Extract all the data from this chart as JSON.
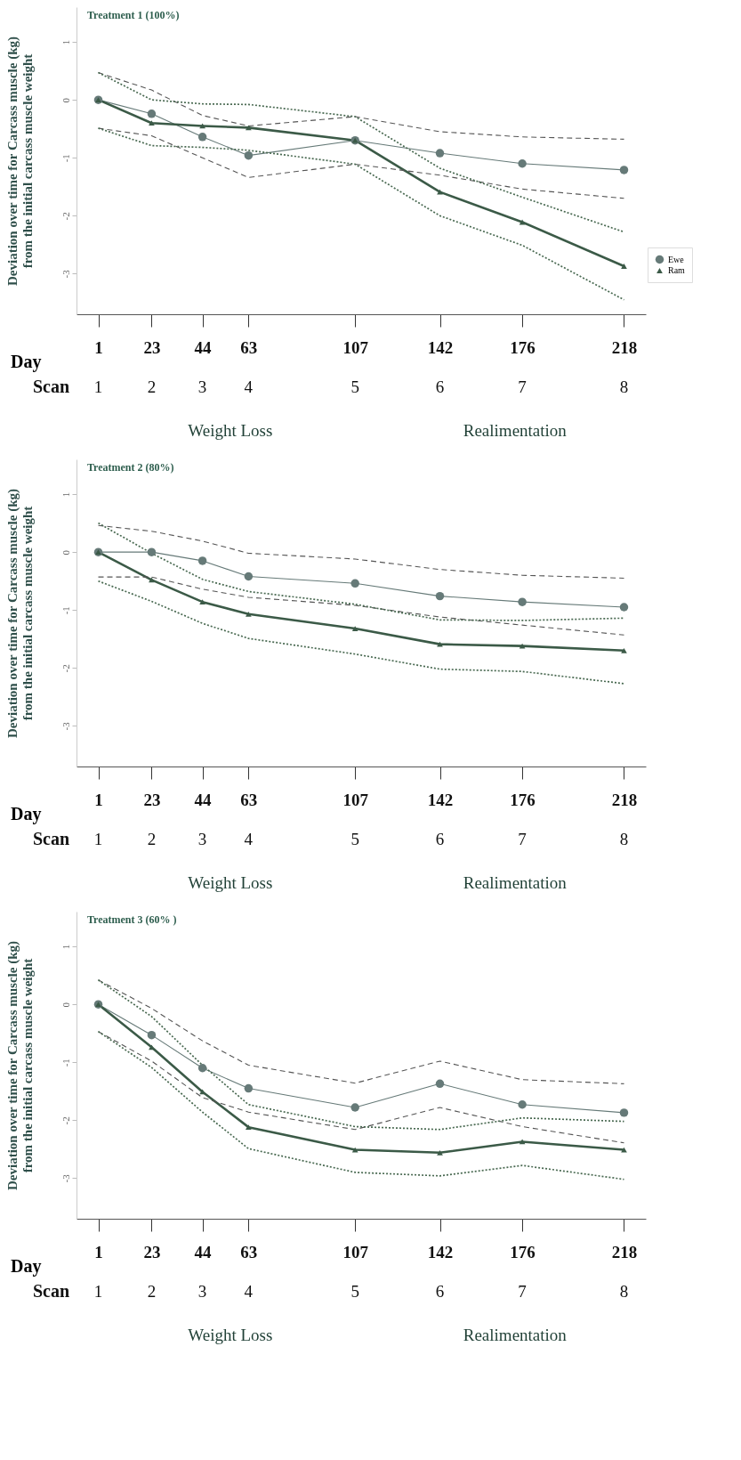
{
  "chart_data": [
    {
      "type": "line",
      "title": "Treatment 1 (100%)",
      "xlabel": "Day",
      "ylabel": "Deviation over time for Carcass muscle (kg)\nfrom the initial carcass muscle weight",
      "x": [
        1,
        23,
        44,
        63,
        107,
        142,
        176,
        218
      ],
      "xlim": [
        -8,
        227
      ],
      "xticks": [
        1,
        23,
        44,
        63,
        107,
        142,
        176,
        218
      ],
      "ylim": [
        -3.7,
        1.6
      ],
      "yticks": [
        1,
        0,
        -1,
        -2,
        -3
      ],
      "legend": "right",
      "grid": false,
      "series": [
        {
          "name": "Ewe",
          "color": "#667a78",
          "marker": "circle",
          "line_style": "solid",
          "values": [
            0,
            -0.24,
            -0.64,
            -0.96,
            -0.7,
            -0.92,
            -1.1,
            -1.21
          ]
        },
        {
          "name": "Ram",
          "color": "#3b5a47",
          "marker": "triangle",
          "line_style": "solid",
          "values": [
            0,
            -0.4,
            -0.45,
            -0.48,
            -0.7,
            -1.59,
            -2.11,
            -2.87
          ]
        },
        {
          "color": "#555555",
          "marker": "none",
          "line_style": "dashed",
          "values": [
            -0.49,
            -0.62,
            -1.0,
            -1.34,
            -1.11,
            -1.3,
            -1.54,
            -1.7
          ]
        },
        {
          "color": "#555555",
          "marker": "none",
          "line_style": "dashed",
          "values": [
            0.47,
            0.17,
            -0.27,
            -0.45,
            -0.29,
            -0.55,
            -0.64,
            -0.68
          ]
        },
        {
          "color": "#4a6a52",
          "marker": "none",
          "line_style": "dotted",
          "values": [
            -0.49,
            -0.79,
            -0.82,
            -0.87,
            -1.11,
            -2.0,
            -2.51,
            -3.45
          ]
        },
        {
          "color": "#4a6a52",
          "marker": "none",
          "line_style": "dotted",
          "values": [
            0.47,
            0,
            -0.07,
            -0.08,
            -0.29,
            -1.18,
            -1.68,
            -2.28
          ]
        }
      ],
      "annotations": [
        "Scan",
        "1",
        "2",
        "3",
        "4",
        "5",
        "6",
        "7",
        "8",
        "Weight Loss",
        "Realimentation"
      ]
    },
    {
      "type": "line",
      "title": "Treatment 2 (80%)",
      "xlabel": "Day",
      "ylabel": "Deviation over time for Carcass muscle (kg)\nfrom the initial carcass muscle weight",
      "x": [
        1,
        23,
        44,
        63,
        107,
        142,
        176,
        218
      ],
      "xlim": [
        -8,
        227
      ],
      "xticks": [
        1,
        23,
        44,
        63,
        107,
        142,
        176,
        218
      ],
      "ylim": [
        -3.7,
        1.6
      ],
      "yticks": [
        1,
        0,
        -1,
        -2,
        -3
      ],
      "legend": "right",
      "grid": false,
      "series": [
        {
          "name": "Ewe",
          "color": "#667a78",
          "marker": "circle",
          "line_style": "solid",
          "values": [
            0,
            0,
            -0.15,
            -0.42,
            -0.54,
            -0.76,
            -0.86,
            -0.95
          ]
        },
        {
          "name": "Ram",
          "color": "#3b5a47",
          "marker": "triangle",
          "line_style": "solid",
          "values": [
            0,
            -0.48,
            -0.86,
            -1.07,
            -1.32,
            -1.59,
            -1.62,
            -1.7
          ]
        },
        {
          "color": "#555555",
          "marker": "none",
          "line_style": "dashed",
          "values": [
            -0.43,
            -0.43,
            -0.64,
            -0.78,
            -0.92,
            -1.12,
            -1.26,
            -1.43
          ]
        },
        {
          "color": "#555555",
          "marker": "none",
          "line_style": "dashed",
          "values": [
            0.46,
            0.36,
            0.19,
            -0.02,
            -0.12,
            -0.3,
            -0.4,
            -0.45
          ]
        },
        {
          "color": "#4a6a52",
          "marker": "none",
          "line_style": "dotted",
          "values": [
            -0.5,
            -0.85,
            -1.23,
            -1.49,
            -1.76,
            -2.02,
            -2.06,
            -2.27
          ]
        },
        {
          "color": "#4a6a52",
          "marker": "none",
          "line_style": "dotted",
          "values": [
            0.5,
            -0.02,
            -0.47,
            -0.68,
            -0.9,
            -1.17,
            -1.18,
            -1.14
          ]
        }
      ],
      "annotations": [
        "Scan",
        "1",
        "2",
        "3",
        "4",
        "5",
        "6",
        "7",
        "8",
        "Weight Loss",
        "Realimentation"
      ]
    },
    {
      "type": "line",
      "title": "Treatment 3 (60% )",
      "xlabel": "Day",
      "ylabel": "Deviation over time for Carcass muscle (kg)\nfrom the initial carcass muscle weight",
      "x": [
        1,
        23,
        44,
        63,
        107,
        142,
        176,
        218
      ],
      "xlim": [
        -8,
        227
      ],
      "xticks": [
        1,
        23,
        44,
        63,
        107,
        142,
        176,
        218
      ],
      "ylim": [
        -3.7,
        1.6
      ],
      "yticks": [
        1,
        0,
        -1,
        -2,
        -3
      ],
      "legend": "right",
      "grid": false,
      "series": [
        {
          "name": "Ewe",
          "color": "#667a78",
          "marker": "circle",
          "line_style": "solid",
          "values": [
            0,
            -0.53,
            -1.1,
            -1.45,
            -1.78,
            -1.37,
            -1.73,
            -1.87
          ]
        },
        {
          "name": "Ram",
          "color": "#3b5a47",
          "marker": "triangle",
          "line_style": "solid",
          "values": [
            0,
            -0.74,
            -1.51,
            -2.12,
            -2.51,
            -2.56,
            -2.37,
            -2.51
          ]
        },
        {
          "color": "#555555",
          "marker": "none",
          "line_style": "dashed",
          "values": [
            -0.47,
            -0.98,
            -1.61,
            -1.86,
            -2.16,
            -1.78,
            -2.11,
            -2.39
          ]
        },
        {
          "color": "#555555",
          "marker": "none",
          "line_style": "dashed",
          "values": [
            0.42,
            -0.07,
            -0.63,
            -1.05,
            -1.36,
            -0.98,
            -1.3,
            -1.37
          ]
        },
        {
          "color": "#4a6a52",
          "marker": "none",
          "line_style": "dotted",
          "values": [
            -0.47,
            -1.09,
            -1.86,
            -2.49,
            -2.9,
            -2.96,
            -2.78,
            -3.02
          ]
        },
        {
          "color": "#4a6a52",
          "marker": "none",
          "line_style": "dotted",
          "values": [
            0.42,
            -0.21,
            -1.05,
            -1.73,
            -2.11,
            -2.16,
            -1.96,
            -2.02
          ]
        }
      ],
      "annotations": [
        "Scan",
        "1",
        "2",
        "3",
        "4",
        "5",
        "6",
        "7",
        "8",
        "Weight Loss",
        "Realimentation"
      ]
    }
  ]
}
